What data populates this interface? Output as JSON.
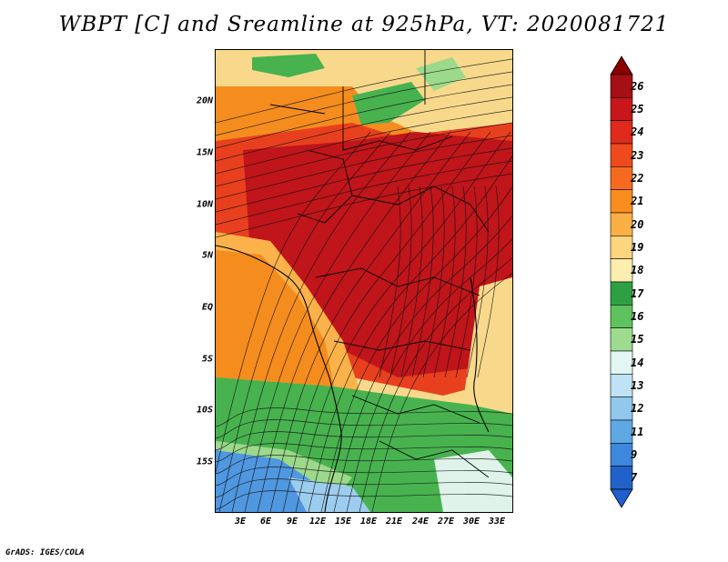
{
  "title": "WBPT [C] and Sreamline at 925hPa, VT: 2020081721",
  "footer": "GrADS: IGES/COLA",
  "map": {
    "lat_ticks": [
      "20N",
      "15N",
      "10N",
      "5N",
      "EQ",
      "5S",
      "10S",
      "15S"
    ],
    "lon_ticks": [
      "3E",
      "6E",
      "9E",
      "12E",
      "15E",
      "18E",
      "21E",
      "24E",
      "27E",
      "30E",
      "33E"
    ]
  },
  "colorbar": {
    "labels": [
      "26",
      "25",
      "24",
      "23",
      "22",
      "21",
      "20",
      "19",
      "18",
      "17",
      "16",
      "15",
      "14",
      "13",
      "12",
      "11",
      "9",
      "7"
    ],
    "colors": [
      "#a50f15",
      "#c8171b",
      "#e02a1c",
      "#ee4a1e",
      "#f56a1e",
      "#f98e1e",
      "#fbb045",
      "#fdd57f",
      "#fbeeae",
      "#2ea043",
      "#5ec25e",
      "#9ddc8e",
      "#e3f6f3",
      "#bfe3f4",
      "#91c9ee",
      "#5ea8e4",
      "#3d87dc",
      "#2062c9"
    ],
    "top_arrow_color": "#8b0000",
    "bottom_arrow_color": "#1f5fd0"
  },
  "field_colors": {
    "hot": "#c0151a",
    "warm": "#e8401e",
    "orange": "#f58c1e",
    "lightorange": "#fbb24a",
    "tan": "#f8d98c",
    "green": "#48b24f",
    "lightgreen": "#9cd98b",
    "pale": "#dff3ea",
    "blue": "#4f97df",
    "lightblue": "#9ccdee"
  }
}
